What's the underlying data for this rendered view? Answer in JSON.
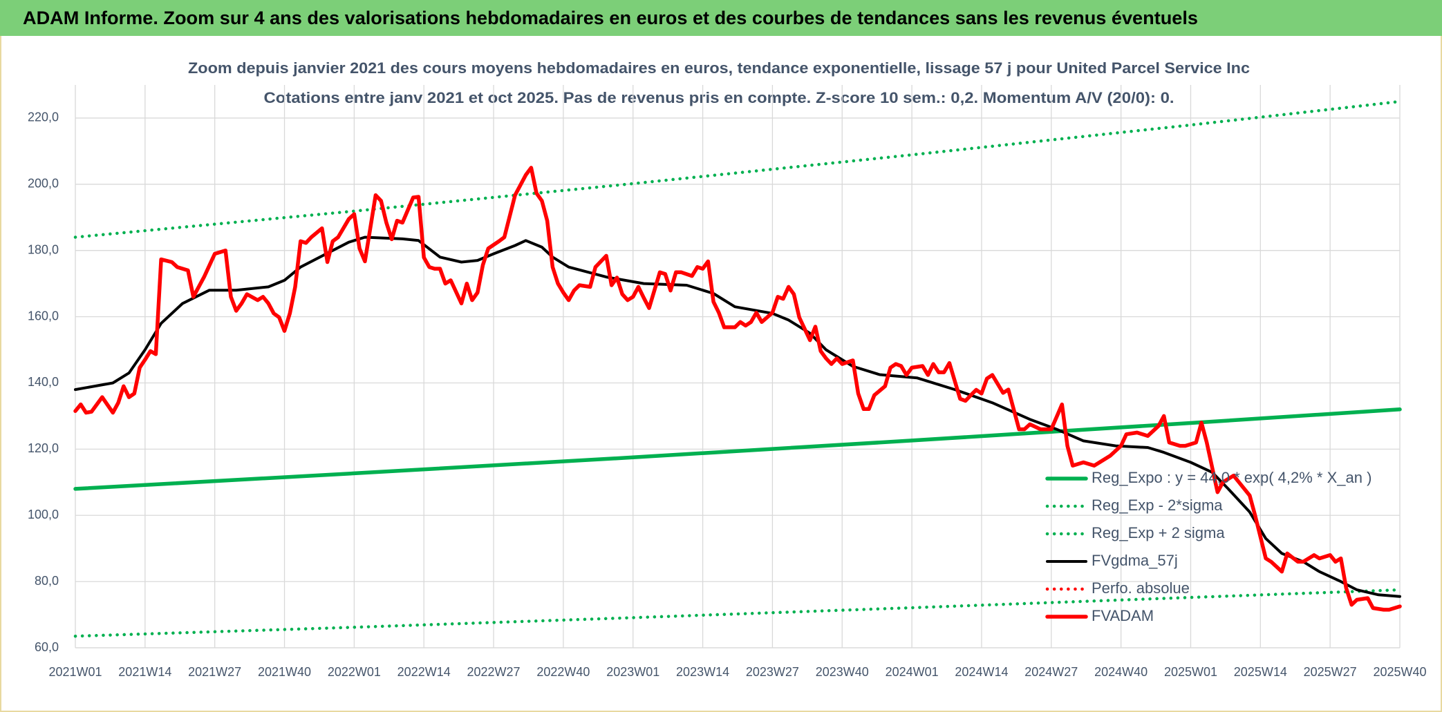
{
  "header": {
    "title": "ADAM Informe. Zoom sur 4 ans des valorisations hebdomadaires en euros et des courbes de tendances sans les revenus éventuels"
  },
  "chart_data": {
    "type": "line",
    "title": "Zoom depuis janvier 2021 des cours moyens hebdomadaires en euros, tendance exponentielle, lissage 57 j pour United Parcel Service Inc",
    "subtitle": "Cotations entre janv 2021 et oct 2025. Pas de revenus pris en compte. Z-score 10 sem.: 0,2. Momentum A/V (20/0): 0.",
    "xlim": [
      0,
      247
    ],
    "xticks": [
      {
        "value": 0,
        "label": "2021W01"
      },
      {
        "value": 13,
        "label": "2021W14"
      },
      {
        "value": 26,
        "label": "2021W27"
      },
      {
        "value": 39,
        "label": "2021W40"
      },
      {
        "value": 52,
        "label": "2022W01"
      },
      {
        "value": 65,
        "label": "2022W14"
      },
      {
        "value": 78,
        "label": "2022W27"
      },
      {
        "value": 91,
        "label": "2022W40"
      },
      {
        "value": 104,
        "label": "2023W01"
      },
      {
        "value": 117,
        "label": "2023W14"
      },
      {
        "value": 130,
        "label": "2023W27"
      },
      {
        "value": 143,
        "label": "2023W40"
      },
      {
        "value": 156,
        "label": "2024W01"
      },
      {
        "value": 169,
        "label": "2024W14"
      },
      {
        "value": 182,
        "label": "2024W27"
      },
      {
        "value": 195,
        "label": "2024W40"
      },
      {
        "value": 208,
        "label": "2025W01"
      },
      {
        "value": 221,
        "label": "2025W14"
      },
      {
        "value": 234,
        "label": "2025W27"
      },
      {
        "value": 247,
        "label": "2025W40"
      }
    ],
    "ylim": [
      60,
      230
    ],
    "yticks": [
      {
        "value": 60,
        "label": "60,0"
      },
      {
        "value": 80,
        "label": "80,0"
      },
      {
        "value": 100,
        "label": "100,0"
      },
      {
        "value": 120,
        "label": "120,0"
      },
      {
        "value": 140,
        "label": "140,0"
      },
      {
        "value": 160,
        "label": "160,0"
      },
      {
        "value": 180,
        "label": "180,0"
      },
      {
        "value": 200,
        "label": "200,0"
      },
      {
        "value": 220,
        "label": "220,0"
      }
    ],
    "grid": true,
    "legend_position": "lower-right",
    "series": [
      {
        "name": "Reg_Expo : y = 44,0 * exp( 4,2% *  X_an )",
        "color": "#00b050",
        "style": "solid",
        "x": [
          0,
          52,
          104,
          156,
          208,
          247
        ],
        "values": [
          108,
          112.7,
          117.5,
          122.6,
          127.9,
          132
        ]
      },
      {
        "name": "Reg_Exp - 2*sigma",
        "color": "#00b050",
        "style": "dotted",
        "x": [
          0,
          52,
          104,
          156,
          208,
          247
        ],
        "values": [
          63.5,
          66.2,
          69.1,
          72.1,
          75.2,
          77.5
        ]
      },
      {
        "name": "Reg_Exp + 2 sigma",
        "color": "#00b050",
        "style": "dotted",
        "x": [
          0,
          52,
          104,
          156,
          208,
          247
        ],
        "values": [
          184,
          191.9,
          200.2,
          208.9,
          217.9,
          225
        ]
      },
      {
        "name": "FVgdma_57j",
        "color": "#000000",
        "style": "solid",
        "x": [
          0,
          7,
          10,
          13,
          16,
          20,
          25,
          30,
          36,
          39,
          42,
          48,
          51,
          54,
          61,
          64,
          68,
          72,
          75,
          78,
          82,
          84,
          87,
          89,
          92,
          99,
          106,
          114,
          119,
          123,
          130,
          133,
          137,
          140,
          145,
          150,
          157,
          164,
          171,
          178,
          183,
          188,
          194,
          200,
          203,
          208,
          212,
          215,
          219,
          222,
          225,
          229,
          232,
          236,
          239,
          243,
          247
        ],
        "values": [
          138,
          140,
          143,
          150,
          158,
          164,
          168,
          168,
          169,
          171,
          175,
          180,
          182.5,
          184,
          183.5,
          183,
          178,
          176.5,
          177,
          179,
          181.5,
          183,
          181,
          178,
          175,
          172,
          170,
          169.5,
          167,
          163,
          161,
          159,
          155,
          150,
          145,
          142.5,
          141.5,
          138,
          134,
          129,
          126,
          122.5,
          121,
          120.5,
          119,
          116,
          113,
          108,
          101,
          93,
          88.5,
          86,
          83,
          80,
          77.5,
          76,
          75.5
        ]
      },
      {
        "name": "Perfo. absolue",
        "color": "#ff0000",
        "style": "dotted",
        "x": [],
        "values": []
      },
      {
        "name": "FVADAM",
        "color": "#ff0000",
        "style": "solid",
        "x": [
          0,
          1,
          2,
          3,
          5,
          7,
          8,
          9,
          10,
          11,
          12,
          13,
          14,
          15,
          16,
          18,
          19,
          21,
          22,
          24,
          26,
          28,
          29,
          30,
          31,
          32,
          34,
          35,
          36,
          37,
          38,
          39,
          40,
          41,
          42,
          43,
          44,
          46,
          47,
          48,
          49,
          51,
          52,
          53,
          54,
          56,
          57,
          58,
          59,
          60,
          61,
          63,
          64,
          65,
          66,
          67,
          68,
          69,
          70,
          72,
          73,
          74,
          75,
          76,
          77,
          79,
          80,
          82,
          84,
          85,
          86,
          87,
          88,
          89,
          90,
          91,
          92,
          93,
          94,
          96,
          97,
          99,
          100,
          101,
          102,
          103,
          104,
          105,
          106,
          107,
          109,
          110,
          111,
          112,
          113,
          115,
          116,
          117,
          118,
          119,
          120,
          121,
          123,
          124,
          125,
          126,
          127,
          128,
          130,
          131,
          132,
          133,
          134,
          135,
          137,
          138,
          139,
          140,
          141,
          142,
          143,
          145,
          146,
          147,
          148,
          149,
          151,
          152,
          153,
          154,
          155,
          156,
          158,
          159,
          160,
          161,
          162,
          163,
          165,
          166,
          167,
          168,
          169,
          170,
          171,
          173,
          174,
          176,
          177,
          178,
          180,
          182,
          184,
          185,
          186,
          188,
          190,
          191,
          193,
          195,
          196,
          198,
          200,
          202,
          203,
          204,
          206,
          207,
          209,
          210,
          211,
          213,
          214,
          216,
          217,
          219,
          220,
          222,
          223,
          225,
          226,
          228,
          229,
          231,
          232,
          234,
          235,
          236,
          237,
          238,
          239,
          241,
          242,
          244,
          245,
          247
        ],
        "values": [
          131.5,
          133.5,
          131,
          131.3,
          135.7,
          131,
          134,
          139,
          135.7,
          136.8,
          144.6,
          147,
          149.6,
          148.7,
          177.3,
          176.5,
          175,
          174,
          166,
          172,
          179,
          180,
          166,
          161.8,
          164,
          166.8,
          165,
          166,
          164,
          161,
          159.8,
          155.7,
          161,
          169,
          182.8,
          182.3,
          184,
          186.7,
          176.5,
          182.8,
          184,
          189.5,
          191,
          180.6,
          176.7,
          196.7,
          195,
          188.4,
          183.4,
          189,
          188.4,
          196,
          196.2,
          177.9,
          175,
          174.5,
          174.5,
          170,
          171,
          164,
          170,
          165,
          167.3,
          175.6,
          180.6,
          182.8,
          184,
          196.7,
          202.8,
          205,
          197.3,
          195,
          189,
          175,
          170,
          167.3,
          165,
          167.9,
          169.5,
          169,
          175,
          178.4,
          169.5,
          171.8,
          166.8,
          165,
          166,
          169,
          165.7,
          162.6,
          173.4,
          172.9,
          167.9,
          173.4,
          173.4,
          172.3,
          175,
          174.5,
          176.7,
          164.5,
          161.2,
          156.8,
          156.8,
          158.4,
          157.3,
          158.4,
          161.2,
          158.4,
          161.2,
          166,
          165.4,
          169,
          166.8,
          159.8,
          152.9,
          157,
          149.6,
          147.4,
          145.7,
          147.4,
          145.7,
          146.8,
          136.8,
          132.1,
          132.1,
          136.3,
          139,
          144.6,
          145.7,
          145.1,
          142.4,
          144.6,
          145.1,
          142.4,
          145.7,
          143.2,
          143.2,
          146,
          135.2,
          134.6,
          136.3,
          137.9,
          136.8,
          141.3,
          142.4,
          137,
          138,
          126,
          126,
          127.5,
          126,
          126,
          133.5,
          121,
          115,
          116,
          115,
          116,
          118,
          121,
          124.5,
          125,
          124,
          127,
          130,
          122,
          121,
          121,
          122,
          128,
          122,
          107,
          110,
          112,
          110,
          106,
          100,
          87,
          86,
          83,
          88.5,
          86,
          86,
          88,
          87,
          88,
          86,
          87,
          78,
          73,
          74.5,
          75,
          72,
          71.5,
          71.5,
          72.5
        ]
      }
    ]
  }
}
